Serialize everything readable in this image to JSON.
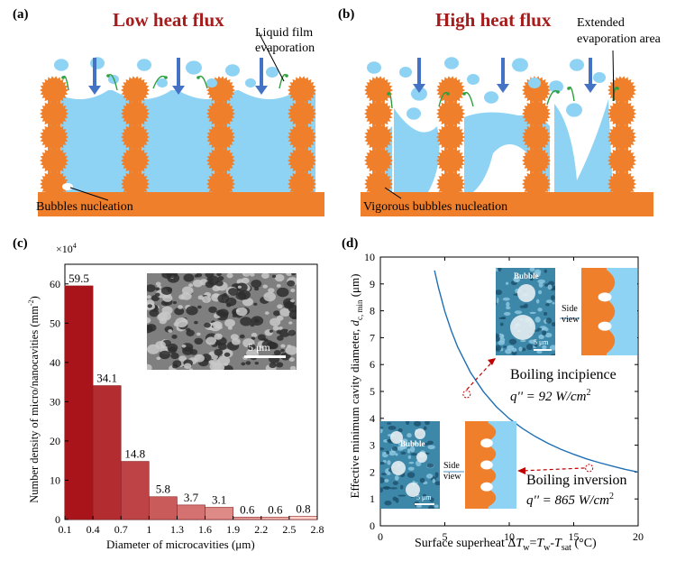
{
  "panel_a": {
    "label": "(a)",
    "title": "Low heat flux",
    "film_label_line1": "Liquid film",
    "film_label_line2": "evaporation",
    "nucleation": "Bubbles nucleation"
  },
  "panel_b": {
    "label": "(b)",
    "title": "High heat flux",
    "area_line1": "Extended",
    "area_line2": "evaporation area",
    "nucleation": "Vigorous bubbles nucleation"
  },
  "panel_c": {
    "label": "(c)",
    "scale_label": "5 μm",
    "multiplier": "×10",
    "multiplier_exp": "4"
  },
  "panel_d": {
    "label": "(d)",
    "ylabel_main": "Effective minimum cavity diameter, ",
    "ylabel_d": "d",
    "ylabel_sub": "c, min",
    "ylabel_unit": "  (μm)",
    "xlabel_main": "Surface superheat Δ",
    "xlabel_T": "T",
    "xlabel_w": "w",
    "xlabel_eq": "=",
    "xlabel_T2": "T",
    "xlabel_w2": "w",
    "xlabel_dash": "-",
    "xlabel_T3": "T",
    "xlabel_sat": "sat",
    "xlabel_unit": " (°C)",
    "incipience_title": "Boiling incipience",
    "incipience_q": "q'' = 92 W/cm",
    "incipience_q_exp": "2",
    "inversion_title": "Boiling inversion",
    "inversion_q": "q'' = 865 W/cm",
    "inversion_q_exp": "2",
    "bubble_label": "Bubble",
    "side_view_1": "Side",
    "side_view_2": "view",
    "scale_label": "5 μm"
  },
  "colors": {
    "copper": "#f07f2c",
    "water": "#8fd3f4",
    "arrow": "#4472c4",
    "green": "#2e9e3e",
    "bar_dark": "#a8141a",
    "bar_light": "#ffd0c8",
    "curve": "#1f6fb4",
    "title_red": "#a61c1c"
  },
  "chart_data": [
    {
      "type": "bar",
      "categories": [
        "0.1-0.4",
        "0.4-0.7",
        "0.7-1",
        "1-1.3",
        "1.3-1.6",
        "1.6-1.9",
        "1.9-2.2",
        "2.2-2.5",
        "2.5-2.8"
      ],
      "x_ticks": [
        "0.1",
        "0.4",
        "0.7",
        "1",
        "1.3",
        "1.6",
        "1.9",
        "2.2",
        "2.5",
        "2.8"
      ],
      "values": [
        59.5,
        34.1,
        14.8,
        5.8,
        3.7,
        3.1,
        0.6,
        0.6,
        0.8
      ],
      "value_labels": [
        "59.5",
        "34.1",
        "14.8",
        "5.8",
        "3.7",
        "3.1",
        "0.6",
        "0.6",
        "0.8"
      ],
      "xlabel": "Diameter of microcavities (μm)",
      "ylabel": "Number density of micro/nanocavities (mm",
      "ylabel_exp": "-2",
      "ylabel_end": ")",
      "ylim": [
        0,
        65
      ],
      "y_ticks": [
        0,
        10,
        20,
        30,
        40,
        50,
        60
      ]
    },
    {
      "type": "line",
      "x_ticks": [
        0,
        5,
        10,
        15,
        20
      ],
      "y_ticks": [
        0,
        1,
        2,
        3,
        4,
        5,
        6,
        7,
        8,
        9,
        10
      ],
      "xlim": [
        0,
        20
      ],
      "ylim": [
        0,
        10
      ],
      "series": [
        {
          "x": [
            4.2,
            4.5,
            5,
            5.5,
            6,
            7,
            8,
            9,
            10,
            11,
            12,
            13,
            14,
            15,
            16,
            17,
            18,
            19,
            20
          ],
          "y": [
            9.5,
            8.87,
            7.98,
            7.26,
            6.65,
            5.7,
            4.99,
            4.43,
            3.99,
            3.63,
            3.33,
            3.07,
            2.85,
            2.66,
            2.49,
            2.35,
            2.22,
            2.1,
            2.0
          ]
        }
      ],
      "points": [
        {
          "x": 6.7,
          "y": 4.9
        },
        {
          "x": 16.2,
          "y": 2.15
        }
      ]
    }
  ]
}
